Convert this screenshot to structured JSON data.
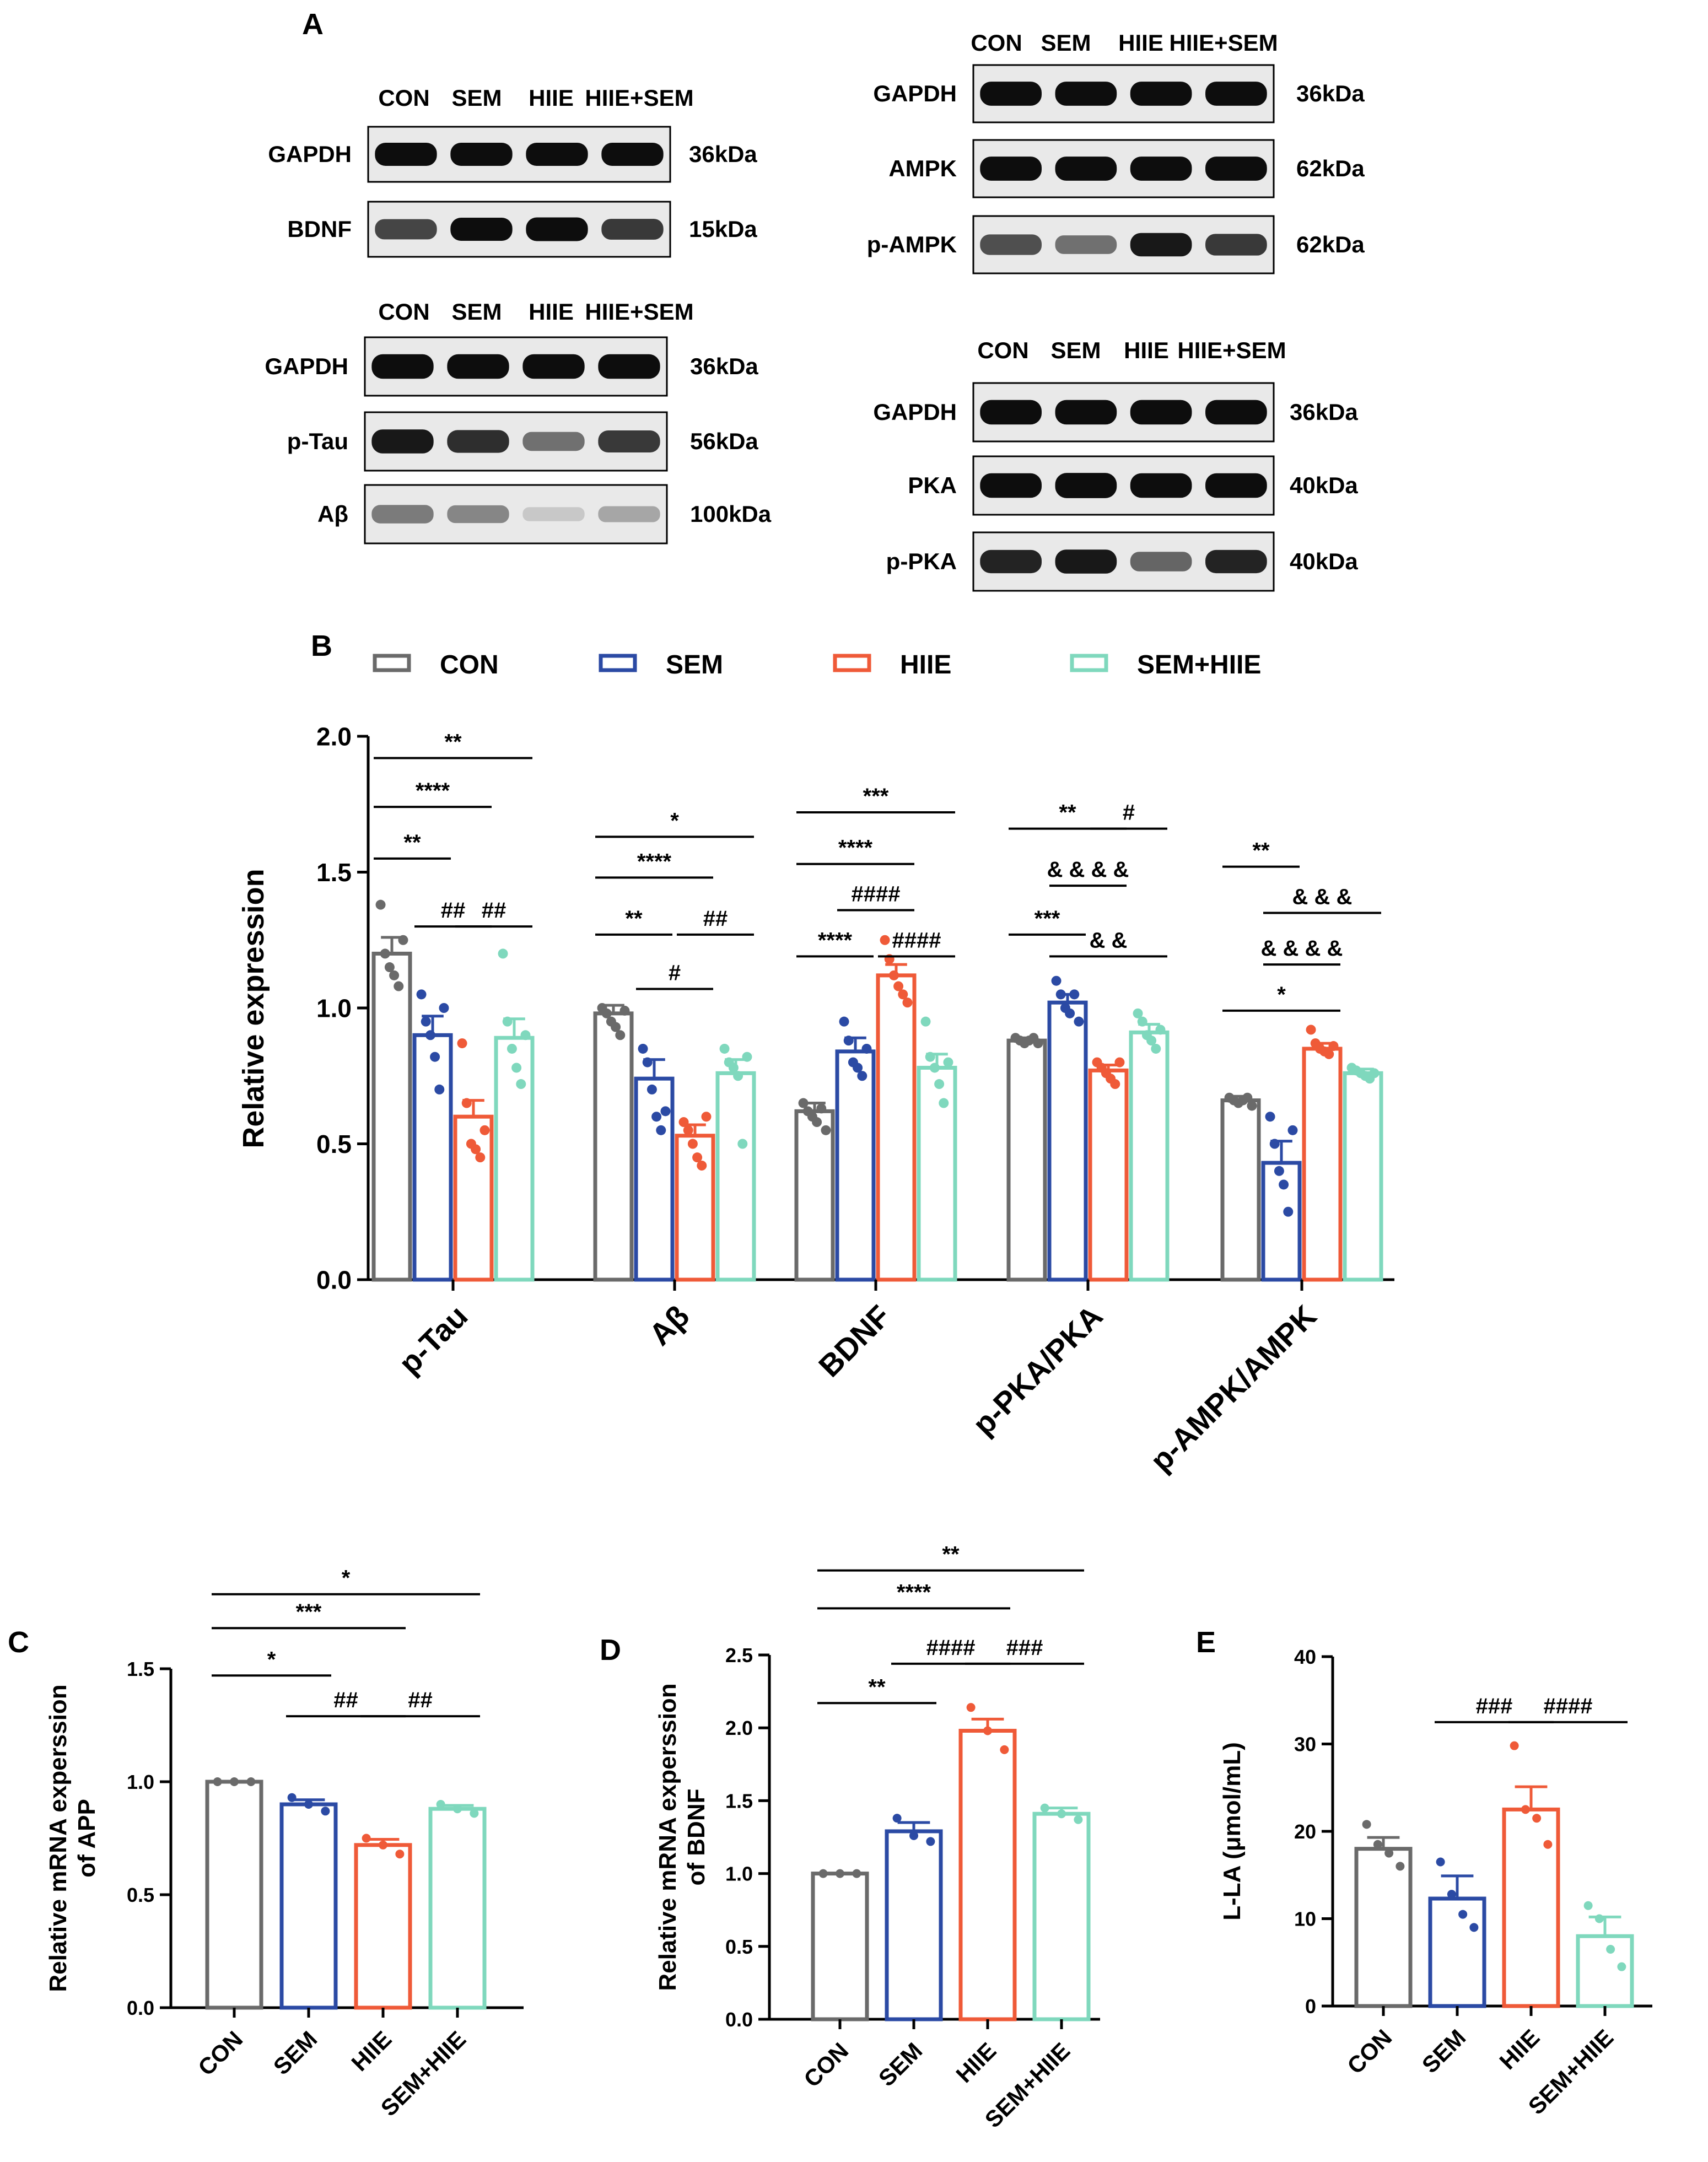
{
  "figure": {
    "panel_labels": [
      "A",
      "B",
      "C",
      "D",
      "E"
    ],
    "colors": {
      "CON": "#6a6a6a",
      "SEM": "#2b4aa4",
      "HIIE": "#ef5a38",
      "SEM+HIIE": "#7fd8bd",
      "axis": "#000000",
      "band": "#0d0d0d",
      "blot_bg": "#e9e9e9"
    }
  },
  "blots": {
    "lane_labels": [
      "CON",
      "SEM",
      "HIIE",
      "HIIE+SEM"
    ],
    "groups": [
      {
        "lanes": [
          "CON",
          "SEM",
          "HIIE",
          "HIIE+SEM"
        ],
        "rows": [
          {
            "protein": "GAPDH",
            "size": "36kDa",
            "intensity": [
              1.0,
              1.0,
              1.0,
              1.0
            ]
          },
          {
            "protein": "BDNF",
            "size": "15kDa",
            "intensity": [
              0.75,
              1.0,
              1.05,
              0.8
            ]
          }
        ]
      },
      {
        "lanes": [
          "CON",
          "SEM",
          "HIIE",
          "HIIE+SEM"
        ],
        "rows": [
          {
            "protein": "GAPDH",
            "size": "36kDa",
            "intensity": [
              1.0,
              1.0,
              1.0,
              1.0
            ]
          },
          {
            "protein": "p-Tau",
            "size": "56kDa",
            "intensity": [
              0.95,
              0.85,
              0.55,
              0.8
            ]
          },
          {
            "protein": "Aβ",
            "size": "100kDa",
            "intensity": [
              0.5,
              0.45,
              0.15,
              0.3
            ]
          }
        ]
      },
      {
        "lanes": [
          "CON",
          "SEM",
          "HIIE",
          "HIIE+SEM"
        ],
        "rows": [
          {
            "protein": "GAPDH",
            "size": "36kDa",
            "intensity": [
              1.0,
              1.0,
              1.0,
              1.0
            ]
          },
          {
            "protein": "AMPK",
            "size": "62kDa",
            "intensity": [
              1.0,
              1.0,
              1.0,
              1.0
            ]
          },
          {
            "protein": "p-AMPK",
            "size": "62kDa",
            "intensity": [
              0.7,
              0.55,
              0.95,
              0.8
            ]
          }
        ]
      },
      {
        "lanes": [
          "CON",
          "SEM",
          "HIIE",
          "HIIE+SEM"
        ],
        "rows": [
          {
            "protein": "GAPDH",
            "size": "36kDa",
            "intensity": [
              1.0,
              1.0,
              1.0,
              1.0
            ]
          },
          {
            "protein": "PKA",
            "size": "40kDa",
            "intensity": [
              1.0,
              1.05,
              1.0,
              1.0
            ]
          },
          {
            "protein": "p-PKA",
            "size": "40kDa",
            "intensity": [
              0.9,
              0.95,
              0.6,
              0.9
            ]
          }
        ]
      }
    ]
  },
  "chart_data": [
    {
      "id": "B",
      "type": "bar",
      "legend": [
        "CON",
        "SEM",
        "HIIE",
        "SEM+HIIE"
      ],
      "categories": [
        "p-Tau",
        "Aβ",
        "BDNF",
        "p-PKA/PKA",
        "p-AMPK/AMPK"
      ],
      "ylabel": "Relative  expression",
      "ylim": [
        0,
        2.0
      ],
      "yticks": [
        "0.0",
        "0.5",
        "1.0",
        "1.5",
        "2.0"
      ],
      "series": [
        {
          "name": "CON",
          "values": [
            1.2,
            0.98,
            0.62,
            0.88,
            0.66
          ],
          "errors": [
            0.06,
            0.03,
            0.03,
            0.01,
            0.015
          ],
          "points": [
            [
              1.38,
              1.2,
              1.15,
              1.12,
              1.08,
              1.25
            ],
            [
              1.0,
              0.98,
              0.95,
              0.93,
              0.9,
              0.99
            ],
            [
              0.65,
              0.62,
              0.6,
              0.58,
              0.63,
              0.55
            ],
            [
              0.89,
              0.88,
              0.87,
              0.88,
              0.89,
              0.87
            ],
            [
              0.67,
              0.66,
              0.65,
              0.66,
              0.67,
              0.64
            ]
          ]
        },
        {
          "name": "SEM",
          "values": [
            0.9,
            0.74,
            0.84,
            1.02,
            0.43
          ],
          "errors": [
            0.07,
            0.07,
            0.05,
            0.03,
            0.08
          ],
          "points": [
            [
              1.05,
              0.95,
              0.9,
              0.82,
              0.7,
              1.0
            ],
            [
              0.85,
              0.8,
              0.7,
              0.6,
              0.55,
              0.62
            ],
            [
              0.95,
              0.88,
              0.8,
              0.78,
              0.75,
              0.85
            ],
            [
              1.1,
              1.05,
              1.0,
              0.98,
              1.05,
              0.95
            ],
            [
              0.6,
              0.5,
              0.4,
              0.35,
              0.25,
              0.55
            ]
          ]
        },
        {
          "name": "HIIE",
          "values": [
            0.6,
            0.53,
            1.12,
            0.77,
            0.85
          ],
          "errors": [
            0.06,
            0.04,
            0.04,
            0.02,
            0.02
          ],
          "points": [
            [
              0.87,
              0.65,
              0.5,
              0.48,
              0.45,
              0.55
            ],
            [
              0.58,
              0.55,
              0.5,
              0.45,
              0.42,
              0.6
            ],
            [
              1.25,
              1.18,
              1.12,
              1.08,
              1.05,
              1.02
            ],
            [
              0.8,
              0.78,
              0.76,
              0.74,
              0.72,
              0.8
            ],
            [
              0.92,
              0.87,
              0.85,
              0.84,
              0.83,
              0.86
            ]
          ]
        },
        {
          "name": "SEM+HIIE",
          "values": [
            0.89,
            0.76,
            0.78,
            0.91,
            0.76
          ],
          "errors": [
            0.07,
            0.05,
            0.05,
            0.03,
            0.015
          ],
          "points": [
            [
              1.2,
              0.95,
              0.85,
              0.78,
              0.72,
              0.9
            ],
            [
              0.85,
              0.8,
              0.78,
              0.75,
              0.5,
              0.82
            ],
            [
              0.95,
              0.82,
              0.78,
              0.72,
              0.65,
              0.8
            ],
            [
              0.98,
              0.95,
              0.9,
              0.88,
              0.85,
              0.92
            ],
            [
              0.78,
              0.77,
              0.76,
              0.75,
              0.74,
              0.76
            ]
          ]
        }
      ],
      "significance": [
        {
          "cat": 0,
          "from": 0,
          "to": 3,
          "y": 1.92,
          "label": "**"
        },
        {
          "cat": 0,
          "from": 0,
          "to": 2,
          "y": 1.74,
          "label": "****"
        },
        {
          "cat": 0,
          "from": 0,
          "to": 1,
          "y": 1.55,
          "label": "**"
        },
        {
          "cat": 0,
          "from": 1,
          "to": 2,
          "y": 1.3,
          "label": "##"
        },
        {
          "cat": 0,
          "from": 2,
          "to": 3,
          "y": 1.3,
          "label": "##"
        },
        {
          "cat": 1,
          "from": 0,
          "to": 3,
          "y": 1.63,
          "label": "*"
        },
        {
          "cat": 1,
          "from": 0,
          "to": 2,
          "y": 1.48,
          "label": "****"
        },
        {
          "cat": 1,
          "from": 0,
          "to": 1,
          "y": 1.27,
          "label": "**"
        },
        {
          "cat": 1,
          "from": 1,
          "to": 2,
          "y": 1.07,
          "label": "#"
        },
        {
          "cat": 1,
          "from": 2,
          "to": 3,
          "y": 1.27,
          "label": "##"
        },
        {
          "cat": 2,
          "from": 0,
          "to": 3,
          "y": 1.72,
          "label": "***"
        },
        {
          "cat": 2,
          "from": 0,
          "to": 2,
          "y": 1.53,
          "label": "****"
        },
        {
          "cat": 2,
          "from": 1,
          "to": 2,
          "y": 1.36,
          "label": "####"
        },
        {
          "cat": 2,
          "from": 0,
          "to": 1,
          "y": 1.19,
          "label": "****"
        },
        {
          "cat": 2,
          "from": 2,
          "to": 3,
          "y": 1.19,
          "label": "####"
        },
        {
          "cat": 3,
          "from": 0,
          "to": 2,
          "y": 1.66,
          "label": "**"
        },
        {
          "cat": 3,
          "from": 2,
          "to": 3,
          "y": 1.66,
          "label": "#"
        },
        {
          "cat": 3,
          "from": 1,
          "to": 2,
          "y": 1.45,
          "label": "& & & &"
        },
        {
          "cat": 3,
          "from": 0,
          "to": 1,
          "y": 1.27,
          "label": "***"
        },
        {
          "cat": 3,
          "from": 1,
          "to": 3,
          "y": 1.19,
          "label": "& &"
        },
        {
          "cat": 4,
          "from": 0,
          "to": 1,
          "y": 1.52,
          "label": "**"
        },
        {
          "cat": 4,
          "from": 1,
          "to": 3,
          "y": 1.35,
          "label": "& & &"
        },
        {
          "cat": 4,
          "from": 1,
          "to": 2,
          "y": 1.16,
          "label": "& & & &"
        },
        {
          "cat": 4,
          "from": 0,
          "to": 2,
          "y": 0.99,
          "label": "*"
        }
      ]
    },
    {
      "id": "C",
      "type": "bar",
      "categories": [
        "CON",
        "SEM",
        "HIIE",
        "SEM+HIIE"
      ],
      "values": [
        1.0,
        0.9,
        0.72,
        0.88
      ],
      "errors": [
        0.0,
        0.02,
        0.025,
        0.015
      ],
      "points": [
        [
          1.0,
          1.0,
          1.0
        ],
        [
          0.93,
          0.9,
          0.87
        ],
        [
          0.75,
          0.72,
          0.68
        ],
        [
          0.9,
          0.88,
          0.86
        ]
      ],
      "ylabel": "Relative mRNA experssion of APP",
      "ylabel_lines": [
        "Relative mRNA experssion",
        "of APP"
      ],
      "ylim": [
        0,
        1.5
      ],
      "yticks": [
        "0.0",
        "0.5",
        "1.0",
        "1.5"
      ],
      "significance": [
        {
          "from": 0,
          "to": 3,
          "y": 1.83,
          "label": "*"
        },
        {
          "from": 0,
          "to": 2,
          "y": 1.68,
          "label": "***"
        },
        {
          "from": 0,
          "to": 1,
          "y": 1.47,
          "label": "*"
        },
        {
          "from": 1,
          "to": 2,
          "y": 1.29,
          "label": "##"
        },
        {
          "from": 2,
          "to": 3,
          "y": 1.29,
          "label": "##"
        }
      ]
    },
    {
      "id": "D",
      "type": "bar",
      "categories": [
        "CON",
        "SEM",
        "HIIE",
        "SEM+HIIE"
      ],
      "values": [
        1.0,
        1.29,
        1.98,
        1.41
      ],
      "errors": [
        0.0,
        0.06,
        0.08,
        0.04
      ],
      "points": [
        [
          1.0,
          1.0,
          1.0
        ],
        [
          1.38,
          1.26,
          1.22
        ],
        [
          2.14,
          1.98,
          1.85
        ],
        [
          1.45,
          1.41,
          1.37
        ]
      ],
      "ylabel": "Relative mRNA experssion of BDNF",
      "ylabel_lines": [
        "Relative mRNA experssion",
        "of BDNF"
      ],
      "ylim": [
        0,
        2.5
      ],
      "yticks": [
        "0.0",
        "0.5",
        "1.0",
        "1.5",
        "2.0",
        "2.5"
      ],
      "significance": [
        {
          "from": 0,
          "to": 3,
          "y": 3.08,
          "label": "**"
        },
        {
          "from": 0,
          "to": 2,
          "y": 2.82,
          "label": "****"
        },
        {
          "from": 0,
          "to": 1,
          "y": 2.17,
          "label": "**"
        },
        {
          "from": 1,
          "to": 2,
          "y": 2.44,
          "label": "####"
        },
        {
          "from": 2,
          "to": 3,
          "y": 2.44,
          "label": "###"
        }
      ]
    },
    {
      "id": "E",
      "type": "bar",
      "categories": [
        "CON",
        "SEM",
        "HIIE",
        "SEM+HIIE"
      ],
      "values": [
        18.0,
        12.3,
        22.5,
        8.0
      ],
      "errors": [
        1.3,
        2.6,
        2.6,
        2.2
      ],
      "points": [
        [
          20.8,
          18.5,
          17.5,
          16.0
        ],
        [
          16.5,
          12.8,
          10.5,
          9.0
        ],
        [
          29.8,
          22.5,
          21.5,
          18.5
        ],
        [
          11.5,
          10.0,
          6.5,
          4.5
        ]
      ],
      "ylabel": "L-LA (μmol/mL)",
      "ylim": [
        0,
        40
      ],
      "yticks": [
        "0",
        "10",
        "20",
        "30",
        "40"
      ],
      "significance": [
        {
          "from": 1,
          "to": 2,
          "y": 32.5,
          "label": "###"
        },
        {
          "from": 2,
          "to": 3,
          "y": 32.5,
          "label": "####"
        }
      ]
    }
  ]
}
